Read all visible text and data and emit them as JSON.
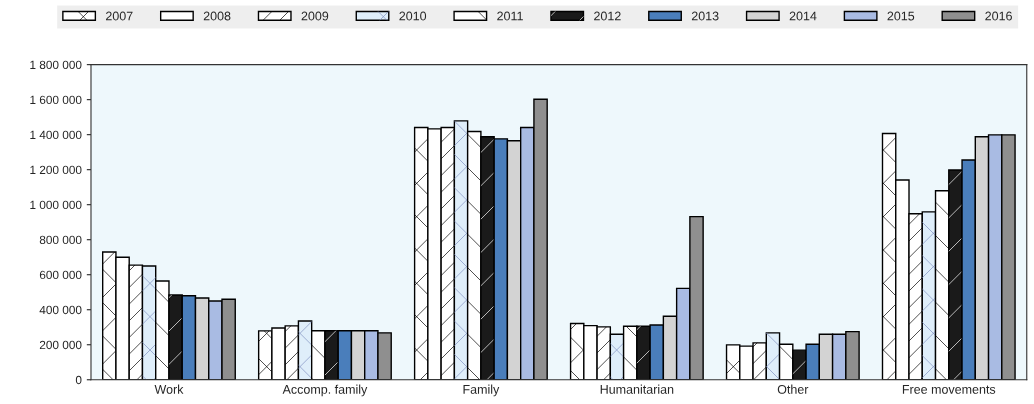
{
  "chart_data": {
    "type": "bar",
    "categories": [
      "Work",
      "Accomp. family",
      "Family",
      "Humanitarian",
      "Other",
      "Free movements"
    ],
    "series": [
      {
        "name": "2007",
        "color": "#ffffff",
        "values": [
          730000,
          279000,
          1441000,
          321000,
          199000,
          1407000
        ]
      },
      {
        "name": "2008",
        "color": "#ffffff",
        "values": [
          700000,
          296000,
          1433000,
          309000,
          192000,
          1141000
        ]
      },
      {
        "name": "2009",
        "color": "#ffffff",
        "values": [
          655000,
          308000,
          1441000,
          302000,
          211000,
          948000
        ]
      },
      {
        "name": "2010",
        "color": "#dfeefa",
        "values": [
          650000,
          336000,
          1479000,
          260000,
          268000,
          959000
        ]
      },
      {
        "name": "2011",
        "color": "#ffffff",
        "values": [
          564000,
          280000,
          1418000,
          306000,
          203000,
          1080000
        ]
      },
      {
        "name": "2012",
        "color": "#1a1a1a",
        "values": [
          484000,
          280000,
          1388000,
          306000,
          169000,
          1198000
        ]
      },
      {
        "name": "2013",
        "color": "#4a7ebb",
        "values": [
          480000,
          280000,
          1376000,
          313000,
          203000,
          1255000
        ]
      },
      {
        "name": "2014",
        "color": "#d3d3d3",
        "values": [
          467000,
          280000,
          1365000,
          363000,
          260000,
          1388000
        ]
      },
      {
        "name": "2015",
        "color": "#a9bbe3",
        "values": [
          450000,
          280000,
          1441000,
          522000,
          260000,
          1399000
        ]
      },
      {
        "name": "2016",
        "color": "#8f8f8f",
        "values": [
          460000,
          268000,
          1602000,
          932000,
          275000,
          1399000
        ]
      }
    ],
    "ylim": [
      0,
      1800000
    ],
    "yticks": [
      0,
      {
        "value": 200000,
        "label": "200 000"
      },
      {
        "value": 400000,
        "label": "400 000"
      },
      {
        "value": 600000,
        "label": "600 000"
      },
      {
        "value": 800000,
        "label": "800 000"
      },
      {
        "value": 1000000,
        "label": "1 000 000"
      },
      {
        "value": 1200000,
        "label": "1 200 000"
      },
      {
        "value": 1400000,
        "label": "1 400 000"
      },
      {
        "value": 1600000,
        "label": "1 600 000"
      },
      {
        "value": 1800000,
        "label": "1 800 000"
      }
    ],
    "grid": false,
    "legend": "top"
  }
}
